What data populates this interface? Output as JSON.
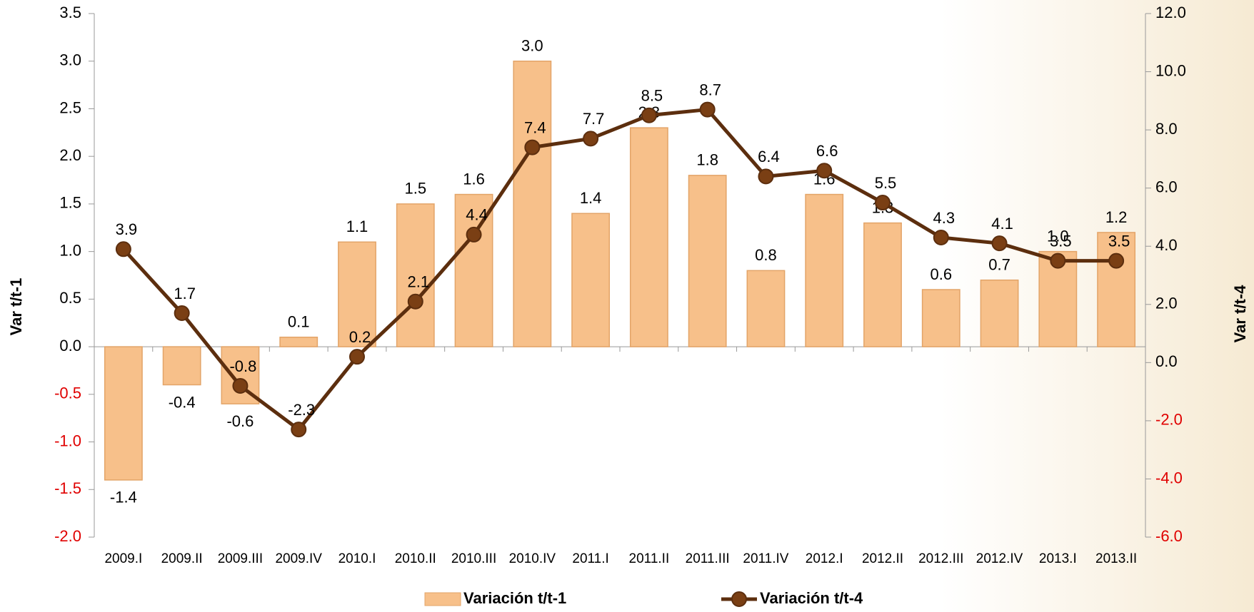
{
  "chart_data": {
    "type": "bar-line",
    "categories": [
      "2009.I",
      "2009.II",
      "2009.III",
      "2009.IV",
      "2010.I",
      "2010.II",
      "2010.III",
      "2010.IV",
      "2011.I",
      "2011.II",
      "2011.III",
      "2011.IV",
      "2012.I",
      "2012.II",
      "2012.III",
      "2012.IV",
      "2013.I",
      "2013.II"
    ],
    "y_label": "Var t/t-1",
    "y2_label": "Var t/t-4",
    "ylim": [
      -2,
      3.5
    ],
    "yticks": [
      {
        "value": -2,
        "label": "-2.0"
      },
      -1.5,
      {
        "value": -1,
        "label": "-1.0"
      },
      -0.5,
      {
        "value": 0,
        "label": "0.0"
      },
      0.5,
      {
        "value": 1,
        "label": "1.0"
      },
      1.5,
      {
        "value": 2,
        "label": "2.0"
      },
      2.5,
      {
        "value": 3,
        "label": "3.0"
      },
      3.5
    ],
    "y2lim": [
      -6,
      12
    ],
    "y2ticks": [
      {
        "value": -6,
        "label": "-6.0"
      },
      {
        "value": -4,
        "label": "-4.0"
      },
      {
        "value": -2,
        "label": "-2.0"
      },
      {
        "value": 0,
        "label": "0.0"
      },
      {
        "value": 2,
        "label": "2.0"
      },
      {
        "value": 4,
        "label": "4.0"
      },
      {
        "value": 6,
        "label": "6.0"
      },
      {
        "value": 8,
        "label": "8.0"
      },
      {
        "value": 10,
        "label": "10.0"
      },
      {
        "value": 12,
        "label": "12.0"
      }
    ],
    "series": [
      {
        "name": "Variación t/t-1",
        "type": "bar",
        "color": "#f7c08a",
        "values": [
          -1.4,
          -0.4,
          -0.6,
          0.1,
          1.1,
          1.5,
          1.6,
          3,
          1.4,
          2.3,
          1.8,
          0.8,
          1.6,
          1.3,
          0.6,
          0.7,
          1,
          1.2
        ],
        "value_labels": [
          "-1.4",
          "-0.4",
          "-0.6",
          "0.1",
          "1.1",
          "1.5",
          "1.6",
          "3.0",
          "1.4",
          "2.3",
          "1.8",
          "0.8",
          "1.6",
          "1.3",
          "0.6",
          "0.7",
          "1.0",
          "1.2"
        ]
      },
      {
        "name": "Variación t/t-4",
        "type": "line",
        "axis": "y2",
        "color": "#5c2e0e",
        "values": [
          3.9,
          1.7,
          -0.8,
          -2.3,
          0.2,
          2.1,
          4.4,
          7.4,
          7.7,
          8.5,
          8.7,
          6.4,
          6.6,
          5.5,
          4.3,
          4.1,
          3.5,
          3.5
        ],
        "value_labels": [
          "3.9",
          "1.7",
          "-0.8",
          "-2.3",
          "0.2",
          "2.1",
          "4.4",
          "7.4",
          "7.7",
          "8.5",
          "8.7",
          "6.4",
          "6.6",
          "5.5",
          "4.3",
          "4.1",
          "3.5",
          "3.5"
        ]
      }
    ]
  }
}
